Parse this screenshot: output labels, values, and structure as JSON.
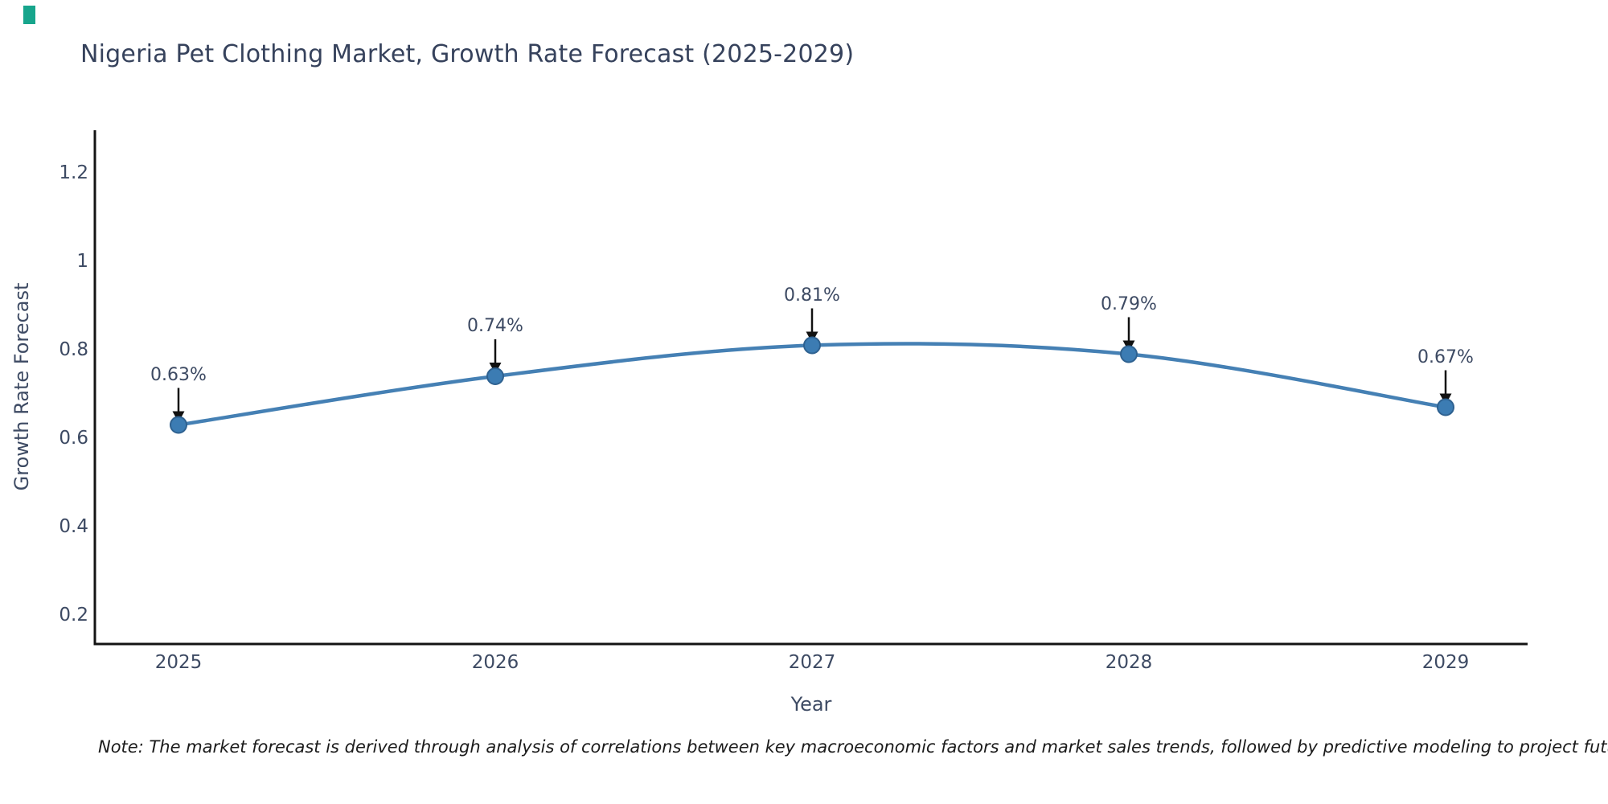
{
  "accent_color": "#17a58c",
  "title": "Nigeria Pet Clothing Market, Growth Rate Forecast (2025-2029)",
  "note": "Note: The market forecast is derived through analysis of correlations between key macroeconomic factors and market sales trends, followed by predictive modeling to project future sales",
  "chart_data": {
    "type": "line",
    "x": [
      "2025",
      "2026",
      "2027",
      "2028",
      "2029"
    ],
    "values": [
      0.63,
      0.74,
      0.81,
      0.79,
      0.67
    ],
    "point_labels": [
      "0.63%",
      "0.74%",
      "0.81%",
      "0.79%",
      "0.67%"
    ],
    "title": "Nigeria Pet Clothing Market, Growth Rate Forecast (2025-2029)",
    "xlabel": "Year",
    "ylabel": "Growth Rate Forecast",
    "yticks": [
      1.2,
      1,
      0.8,
      0.6,
      0.4,
      0.2
    ],
    "ylim": [
      0.14,
      1.31
    ],
    "grid": false,
    "legend": "none",
    "smooth": true,
    "line_color": "#4580b4",
    "marker_color": "#3c7cb3",
    "marker_edge_color": "#2e6190",
    "axis_color": "#141414",
    "annotation_arrow_color": "#111111"
  }
}
